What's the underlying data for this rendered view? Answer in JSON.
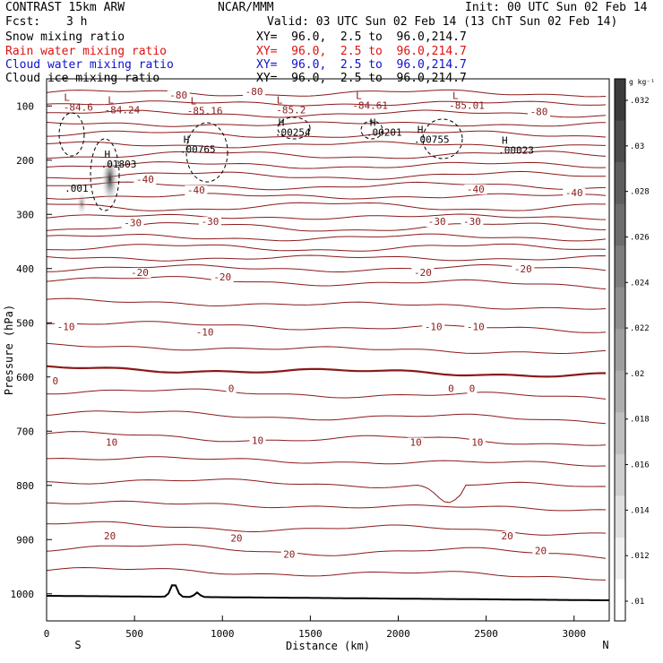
{
  "header": {
    "model": "CONTRAST 15km ARW",
    "center": "NCAR/MMM",
    "init": "Init: 00 UTC Sun 02 Feb 14",
    "fcst_label": "Fcst:",
    "fcst_value": "3 h",
    "valid": "Valid: 03 UTC Sun 02 Feb 14 (13 ChT Sun 02 Feb 14)"
  },
  "fields": [
    {
      "name": "Snow mixing ratio",
      "xy": "XY=  96.0,  2.5 to  96.0,214.7",
      "color": "#000000"
    },
    {
      "name": "Rain water mixing ratio",
      "xy": "XY=  96.0,  2.5 to  96.0,214.7",
      "color": "#e01010"
    },
    {
      "name": "Cloud water mixing ratio",
      "xy": "XY=  96.0,  2.5 to  96.0,214.7",
      "color": "#1010d0"
    },
    {
      "name": "Cloud ice mixing ratio",
      "xy": "XY=  96.0,  2.5 to  96.0,214.7",
      "color": "#000000"
    }
  ],
  "chart_data": {
    "type": "contour",
    "xlabel": "Distance (km)",
    "ylabel": "Pressure (hPa)",
    "xlim": [
      0,
      3200
    ],
    "ylim": [
      1050,
      50
    ],
    "xticks": [
      0,
      500,
      1000,
      1500,
      2000,
      2500,
      3000
    ],
    "yticks": [
      100,
      200,
      300,
      400,
      500,
      600,
      700,
      800,
      900,
      1000
    ],
    "x_endpoint_labels": {
      "left": "S",
      "right": "N"
    },
    "colorbar": {
      "unit": "g kg⁻¹",
      "ticks": [
        ".01",
        ".012",
        ".014",
        ".016",
        ".018",
        ".02",
        ".022",
        ".024",
        ".026",
        ".028",
        ".03",
        ".032"
      ]
    },
    "isotherm_labels": [
      {
        "text": "-80",
        "x": 750,
        "p": 85
      },
      {
        "text": "-80",
        "x": 1180,
        "p": 78
      },
      {
        "text": "-80",
        "x": 2800,
        "p": 115
      },
      {
        "text": "-40",
        "x": 560,
        "p": 240
      },
      {
        "text": "-40",
        "x": 850,
        "p": 260
      },
      {
        "text": "-40",
        "x": 2440,
        "p": 258
      },
      {
        "text": "-40",
        "x": 3000,
        "p": 265
      },
      {
        "text": "-30",
        "x": 490,
        "p": 320
      },
      {
        "text": "-30",
        "x": 930,
        "p": 318
      },
      {
        "text": "-30",
        "x": 2220,
        "p": 318
      },
      {
        "text": "-30",
        "x": 2420,
        "p": 318
      },
      {
        "text": "-20",
        "x": 530,
        "p": 412
      },
      {
        "text": "-20",
        "x": 1000,
        "p": 420
      },
      {
        "text": "-20",
        "x": 2140,
        "p": 412
      },
      {
        "text": "-20",
        "x": 2710,
        "p": 405
      },
      {
        "text": "-10",
        "x": 110,
        "p": 512
      },
      {
        "text": "-10",
        "x": 900,
        "p": 522
      },
      {
        "text": "-10",
        "x": 2200,
        "p": 512
      },
      {
        "text": "-10",
        "x": 2440,
        "p": 512
      },
      {
        "text": "0",
        "x": 50,
        "p": 612
      },
      {
        "text": "0",
        "x": 1050,
        "p": 626
      },
      {
        "text": "0",
        "x": 2300,
        "p": 626
      },
      {
        "text": "0",
        "x": 2420,
        "p": 626
      },
      {
        "text": "10",
        "x": 370,
        "p": 725
      },
      {
        "text": "10",
        "x": 1200,
        "p": 722
      },
      {
        "text": "10",
        "x": 2100,
        "p": 725
      },
      {
        "text": "10",
        "x": 2450,
        "p": 725
      },
      {
        "text": "20",
        "x": 360,
        "p": 898
      },
      {
        "text": "20",
        "x": 1080,
        "p": 902
      },
      {
        "text": "20",
        "x": 1380,
        "p": 932
      },
      {
        "text": "20",
        "x": 2620,
        "p": 898
      },
      {
        "text": "20",
        "x": 2810,
        "p": 925
      }
    ],
    "extrema_labels": [
      {
        "mark": "L",
        "value": "-84.6",
        "x": 180,
        "p": 105
      },
      {
        "mark": "L",
        "value": "-84.24",
        "x": 430,
        "p": 110
      },
      {
        "mark": "L",
        "value": "-85.16",
        "x": 900,
        "p": 112
      },
      {
        "mark": "L",
        "value": "-85.2",
        "x": 1390,
        "p": 110
      },
      {
        "mark": "L",
        "value": "-84.61",
        "x": 1840,
        "p": 102
      },
      {
        "mark": "L",
        "value": "-85.01",
        "x": 2390,
        "p": 102
      },
      {
        "mark": "H",
        "value": ".00254",
        "x": 1400,
        "p": 152
      },
      {
        "mark": "H",
        "value": ".00201",
        "x": 1920,
        "p": 152
      },
      {
        "mark": "H",
        "value": ".00755",
        "x": 2190,
        "p": 165
      },
      {
        "mark": "H",
        "value": ".00765",
        "x": 860,
        "p": 183
      },
      {
        "mark": "H",
        "value": ".00023",
        "x": 2670,
        "p": 185
      },
      {
        "mark": "H",
        "value": ".01803",
        "x": 410,
        "p": 210
      },
      {
        "mark": "",
        "value": ".001",
        "x": 170,
        "p": 255
      }
    ]
  }
}
